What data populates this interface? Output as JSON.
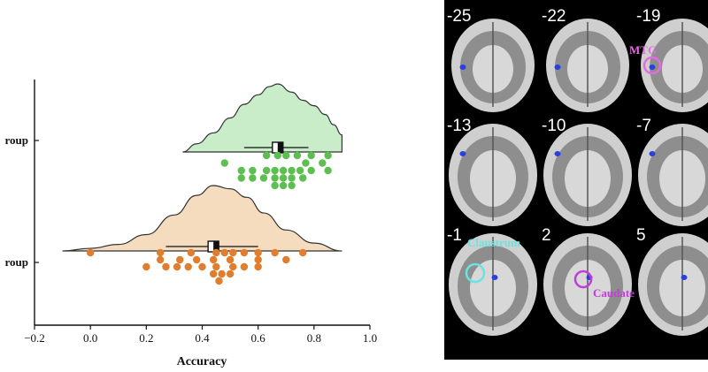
{
  "chart_data": {
    "type": "raincloud",
    "xlabel": "Accuracy",
    "ylabel": "",
    "xlim": [
      -0.2,
      1.0
    ],
    "x_ticks": [
      "−0.2",
      "0.0",
      "0.2",
      "0.4",
      "0.6",
      "0.8",
      "1.0"
    ],
    "x_tick_values": [
      -0.2,
      0.0,
      0.2,
      0.4,
      0.6,
      0.8,
      1.0
    ],
    "y_tick_labels": [
      "roup",
      "roup"
    ],
    "series": [
      {
        "key": "top-group",
        "color": "#c9ecc9",
        "edge": "#333333",
        "point_color": "#5cbf4f",
        "range": [
          0.33,
          0.9
        ],
        "density": [
          [
            0.33,
            0.0
          ],
          [
            0.38,
            0.12
          ],
          [
            0.44,
            0.28
          ],
          [
            0.5,
            0.5
          ],
          [
            0.55,
            0.7
          ],
          [
            0.6,
            0.84
          ],
          [
            0.64,
            0.96
          ],
          [
            0.67,
            1.0
          ],
          [
            0.72,
            0.88
          ],
          [
            0.76,
            0.76
          ],
          [
            0.8,
            0.68
          ],
          [
            0.84,
            0.55
          ],
          [
            0.87,
            0.4
          ],
          [
            0.9,
            0.25
          ]
        ],
        "mean": 0.67,
        "whisker": [
          0.55,
          0.78
        ],
        "points": [
          [
            0.63,
            0
          ],
          [
            0.67,
            0
          ],
          [
            0.7,
            0
          ],
          [
            0.74,
            0
          ],
          [
            0.79,
            0
          ],
          [
            0.85,
            0
          ],
          [
            0.77,
            1
          ],
          [
            0.83,
            1
          ],
          [
            0.48,
            1
          ],
          [
            0.54,
            2
          ],
          [
            0.58,
            2
          ],
          [
            0.63,
            2
          ],
          [
            0.66,
            2
          ],
          [
            0.69,
            2
          ],
          [
            0.72,
            2
          ],
          [
            0.75,
            2
          ],
          [
            0.79,
            2
          ],
          [
            0.85,
            2
          ],
          [
            0.54,
            3
          ],
          [
            0.58,
            3
          ],
          [
            0.62,
            3
          ],
          [
            0.66,
            3
          ],
          [
            0.69,
            3
          ],
          [
            0.72,
            3
          ],
          [
            0.76,
            3
          ],
          [
            0.66,
            4
          ],
          [
            0.69,
            4
          ],
          [
            0.72,
            4
          ]
        ]
      },
      {
        "key": "bottom-group",
        "color": "#f5dcbf",
        "edge": "#333333",
        "point_color": "#e07d2e",
        "range": [
          -0.1,
          0.9
        ],
        "density": [
          [
            -0.1,
            0.0
          ],
          [
            0.0,
            0.04
          ],
          [
            0.1,
            0.1
          ],
          [
            0.2,
            0.25
          ],
          [
            0.3,
            0.55
          ],
          [
            0.38,
            0.85
          ],
          [
            0.44,
            1.0
          ],
          [
            0.5,
            0.95
          ],
          [
            0.56,
            0.82
          ],
          [
            0.62,
            0.58
          ],
          [
            0.7,
            0.32
          ],
          [
            0.8,
            0.12
          ],
          [
            0.9,
            0.0
          ]
        ],
        "mean": 0.44,
        "whisker": [
          0.27,
          0.6
        ],
        "points": [
          [
            0.0,
            0
          ],
          [
            0.25,
            0
          ],
          [
            0.36,
            0
          ],
          [
            0.45,
            0
          ],
          [
            0.48,
            0
          ],
          [
            0.51,
            0
          ],
          [
            0.55,
            0
          ],
          [
            0.6,
            0
          ],
          [
            0.66,
            0
          ],
          [
            0.76,
            0
          ],
          [
            0.25,
            1
          ],
          [
            0.32,
            1
          ],
          [
            0.38,
            1
          ],
          [
            0.44,
            1
          ],
          [
            0.5,
            1
          ],
          [
            0.6,
            1
          ],
          [
            0.7,
            1
          ],
          [
            0.2,
            2
          ],
          [
            0.27,
            2
          ],
          [
            0.31,
            2
          ],
          [
            0.35,
            2
          ],
          [
            0.4,
            2
          ],
          [
            0.45,
            2
          ],
          [
            0.51,
            2
          ],
          [
            0.55,
            2
          ],
          [
            0.6,
            2
          ],
          [
            0.44,
            3
          ],
          [
            0.47,
            3
          ],
          [
            0.5,
            3
          ],
          [
            0.46,
            4
          ]
        ]
      }
    ]
  },
  "brain_panel": {
    "background": "#000000",
    "slices": [
      "-25",
      "-22",
      "-19",
      "-13",
      "-10",
      "-7",
      "-1",
      "2",
      "5"
    ],
    "regions": [
      {
        "key": "mtg",
        "label": "MTG",
        "color": "#e46be1",
        "slice": 2
      },
      {
        "key": "claustrum",
        "label": "Claustrum",
        "color": "#67e5e0",
        "slice": 6
      },
      {
        "key": "caudate",
        "label": "Caudate",
        "color": "#c13cd9",
        "slice": 7
      }
    ]
  }
}
